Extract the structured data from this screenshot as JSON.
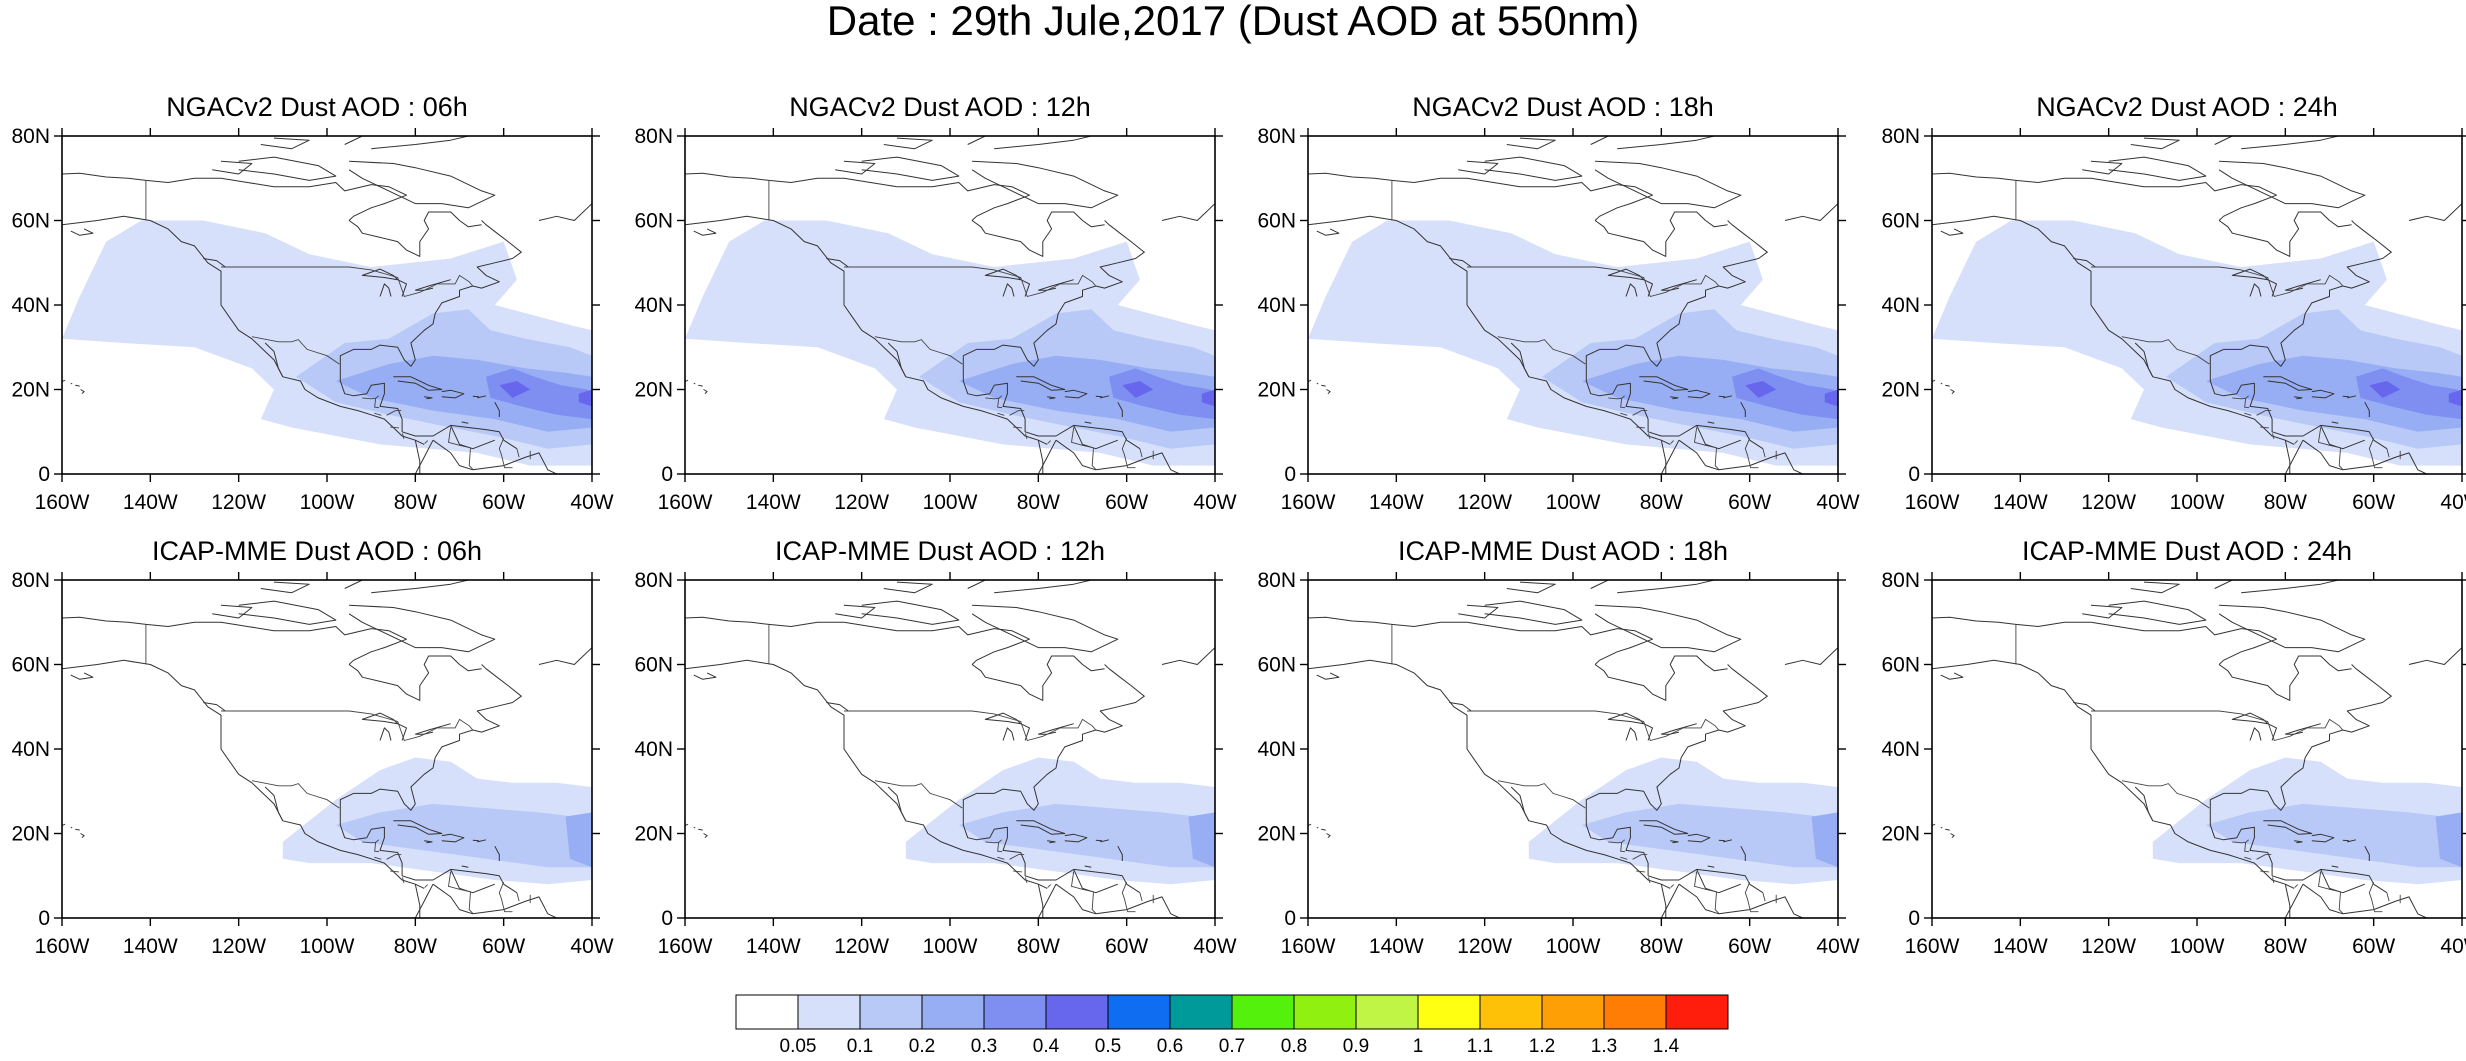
{
  "title": "Date : 29th Jule,2017 (Dust AOD at 550nm)",
  "lat_labels": [
    "0",
    "20N",
    "40N",
    "60N",
    "80N"
  ],
  "lon_labels": [
    "160W",
    "140W",
    "120W",
    "100W",
    "80W",
    "60W",
    "40W"
  ],
  "panels": [
    {
      "title": "NGACv2 Dust AOD : 06h",
      "model": "NGACv2",
      "lead": "06h"
    },
    {
      "title": "NGACv2 Dust AOD : 12h",
      "model": "NGACv2",
      "lead": "12h"
    },
    {
      "title": "NGACv2 Dust AOD : 18h",
      "model": "NGACv2",
      "lead": "18h"
    },
    {
      "title": "NGACv2 Dust AOD : 24h",
      "model": "NGACv2",
      "lead": "24h"
    },
    {
      "title": "ICAP-MME Dust AOD : 06h",
      "model": "ICAP-MME",
      "lead": "06h"
    },
    {
      "title": "ICAP-MME Dust AOD : 12h",
      "model": "ICAP-MME",
      "lead": "12h"
    },
    {
      "title": "ICAP-MME Dust AOD : 18h",
      "model": "ICAP-MME",
      "lead": "18h"
    },
    {
      "title": "ICAP-MME Dust AOD : 24h",
      "model": "ICAP-MME",
      "lead": "24h"
    }
  ],
  "colorbar": {
    "labels": [
      "0.05",
      "0.1",
      "0.2",
      "0.3",
      "0.4",
      "0.5",
      "0.6",
      "0.7",
      "0.8",
      "0.9",
      "1",
      "1.1",
      "1.2",
      "1.3",
      "1.4"
    ],
    "colors": [
      "#ffffff",
      "#d7e0fb",
      "#b8c8f7",
      "#98aef4",
      "#7e8ef1",
      "#6767ee",
      "#0f6df2",
      "#009a9a",
      "#54f10c",
      "#90f00f",
      "#c0f545",
      "#ffff12",
      "#ffc108",
      "#ff9f06",
      "#ff7d05",
      "#ff1d0c"
    ]
  }
}
